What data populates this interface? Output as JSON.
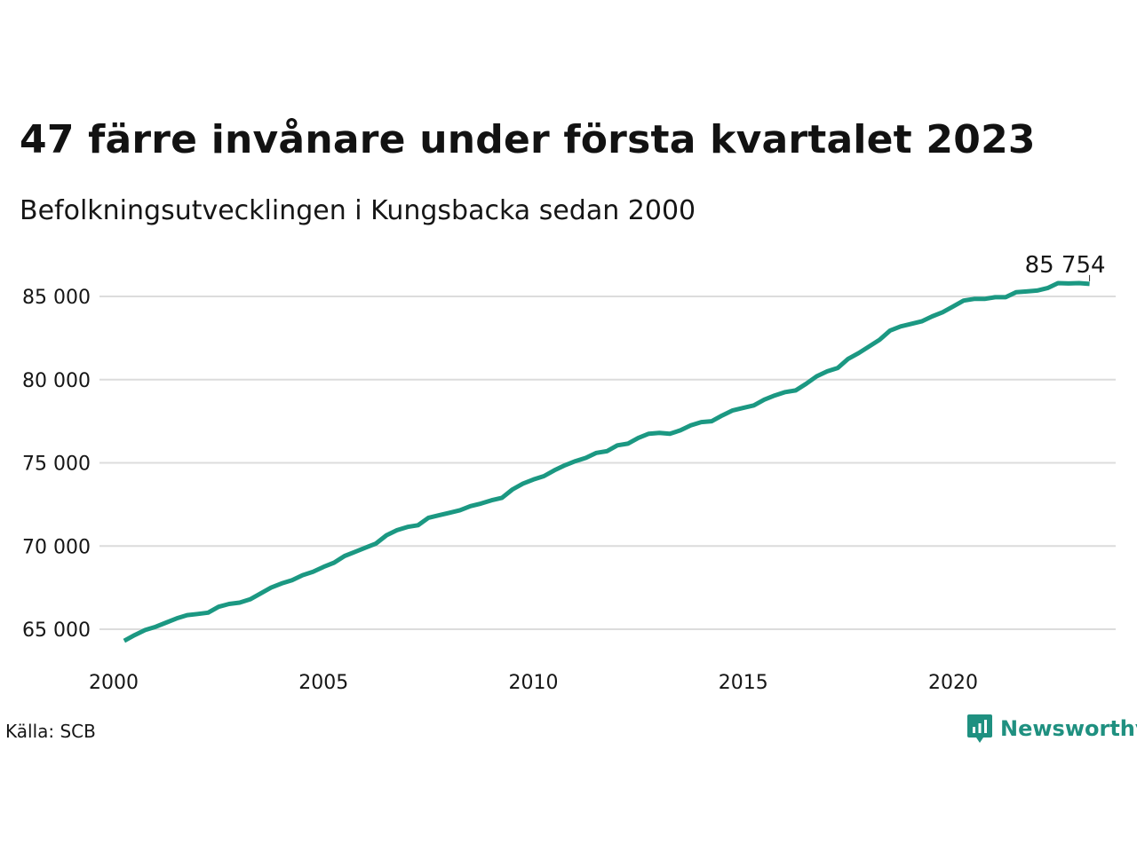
{
  "header": {
    "title": "47 färre invånare under första kvartalet 2023",
    "subtitle": "Befolkningsutvecklingen i Kungsbacka sedan 2000"
  },
  "footer": {
    "source": "Källa: SCB",
    "brand": "Newsworthy"
  },
  "colors": {
    "line": "#1b9882",
    "grid": "#dcdcdc",
    "brand": "#1f9080"
  },
  "icons": {
    "brand_logo": "bar-chart-speech-bubble-icon"
  },
  "chart_data": {
    "type": "line",
    "grid": true,
    "xlim": [
      2000,
      2024
    ],
    "ylim": [
      63000,
      87500
    ],
    "x_ticks": [
      2000,
      2005,
      2010,
      2015,
      2020
    ],
    "y_ticks": [
      65000,
      70000,
      75000,
      80000,
      85000
    ],
    "x_tick_labels": [
      "2000",
      "2005",
      "2010",
      "2015",
      "2020"
    ],
    "y_tick_labels": [
      "65 000",
      "70 000",
      "75 000",
      "80 000",
      "85 000"
    ],
    "end_label": "85 754",
    "series": [
      {
        "points": [
          [
            2000.25,
            64300
          ],
          [
            2000.5,
            64650
          ],
          [
            2000.75,
            64950
          ],
          [
            2001.0,
            65150
          ],
          [
            2001.25,
            65400
          ],
          [
            2001.5,
            65650
          ],
          [
            2001.75,
            65850
          ],
          [
            2002.0,
            65920
          ],
          [
            2002.25,
            66000
          ],
          [
            2002.5,
            66350
          ],
          [
            2002.75,
            66520
          ],
          [
            2003.0,
            66600
          ],
          [
            2003.25,
            66800
          ],
          [
            2003.5,
            67150
          ],
          [
            2003.75,
            67500
          ],
          [
            2004.0,
            67750
          ],
          [
            2004.25,
            67950
          ],
          [
            2004.5,
            68250
          ],
          [
            2004.75,
            68450
          ],
          [
            2005.0,
            68750
          ],
          [
            2005.25,
            69000
          ],
          [
            2005.5,
            69400
          ],
          [
            2005.75,
            69650
          ],
          [
            2006.0,
            69900
          ],
          [
            2006.25,
            70150
          ],
          [
            2006.5,
            70650
          ],
          [
            2006.75,
            70950
          ],
          [
            2007.0,
            71150
          ],
          [
            2007.25,
            71250
          ],
          [
            2007.5,
            71700
          ],
          [
            2007.75,
            71850
          ],
          [
            2008.0,
            72000
          ],
          [
            2008.25,
            72150
          ],
          [
            2008.5,
            72400
          ],
          [
            2008.75,
            72550
          ],
          [
            2009.0,
            72750
          ],
          [
            2009.25,
            72900
          ],
          [
            2009.5,
            73400
          ],
          [
            2009.75,
            73750
          ],
          [
            2010.0,
            74000
          ],
          [
            2010.25,
            74200
          ],
          [
            2010.5,
            74550
          ],
          [
            2010.75,
            74850
          ],
          [
            2011.0,
            75100
          ],
          [
            2011.25,
            75300
          ],
          [
            2011.5,
            75600
          ],
          [
            2011.75,
            75700
          ],
          [
            2012.0,
            76050
          ],
          [
            2012.25,
            76150
          ],
          [
            2012.5,
            76500
          ],
          [
            2012.75,
            76750
          ],
          [
            2013.0,
            76800
          ],
          [
            2013.25,
            76750
          ],
          [
            2013.5,
            76950
          ],
          [
            2013.75,
            77250
          ],
          [
            2014.0,
            77450
          ],
          [
            2014.25,
            77500
          ],
          [
            2014.5,
            77850
          ],
          [
            2014.75,
            78150
          ],
          [
            2015.0,
            78300
          ],
          [
            2015.25,
            78450
          ],
          [
            2015.5,
            78800
          ],
          [
            2015.75,
            79050
          ],
          [
            2016.0,
            79250
          ],
          [
            2016.25,
            79350
          ],
          [
            2016.5,
            79750
          ],
          [
            2016.75,
            80200
          ],
          [
            2017.0,
            80500
          ],
          [
            2017.25,
            80700
          ],
          [
            2017.5,
            81250
          ],
          [
            2017.75,
            81600
          ],
          [
            2018.0,
            82000
          ],
          [
            2018.25,
            82400
          ],
          [
            2018.5,
            82950
          ],
          [
            2018.75,
            83200
          ],
          [
            2019.0,
            83350
          ],
          [
            2019.25,
            83500
          ],
          [
            2019.5,
            83800
          ],
          [
            2019.75,
            84050
          ],
          [
            2020.0,
            84400
          ],
          [
            2020.25,
            84750
          ],
          [
            2020.5,
            84850
          ],
          [
            2020.75,
            84850
          ],
          [
            2021.0,
            84950
          ],
          [
            2021.25,
            84950
          ],
          [
            2021.5,
            85250
          ],
          [
            2021.75,
            85300
          ],
          [
            2022.0,
            85350
          ],
          [
            2022.25,
            85500
          ],
          [
            2022.5,
            85800
          ],
          [
            2022.75,
            85780
          ],
          [
            2023.0,
            85801
          ],
          [
            2023.25,
            85754
          ]
        ]
      }
    ]
  }
}
